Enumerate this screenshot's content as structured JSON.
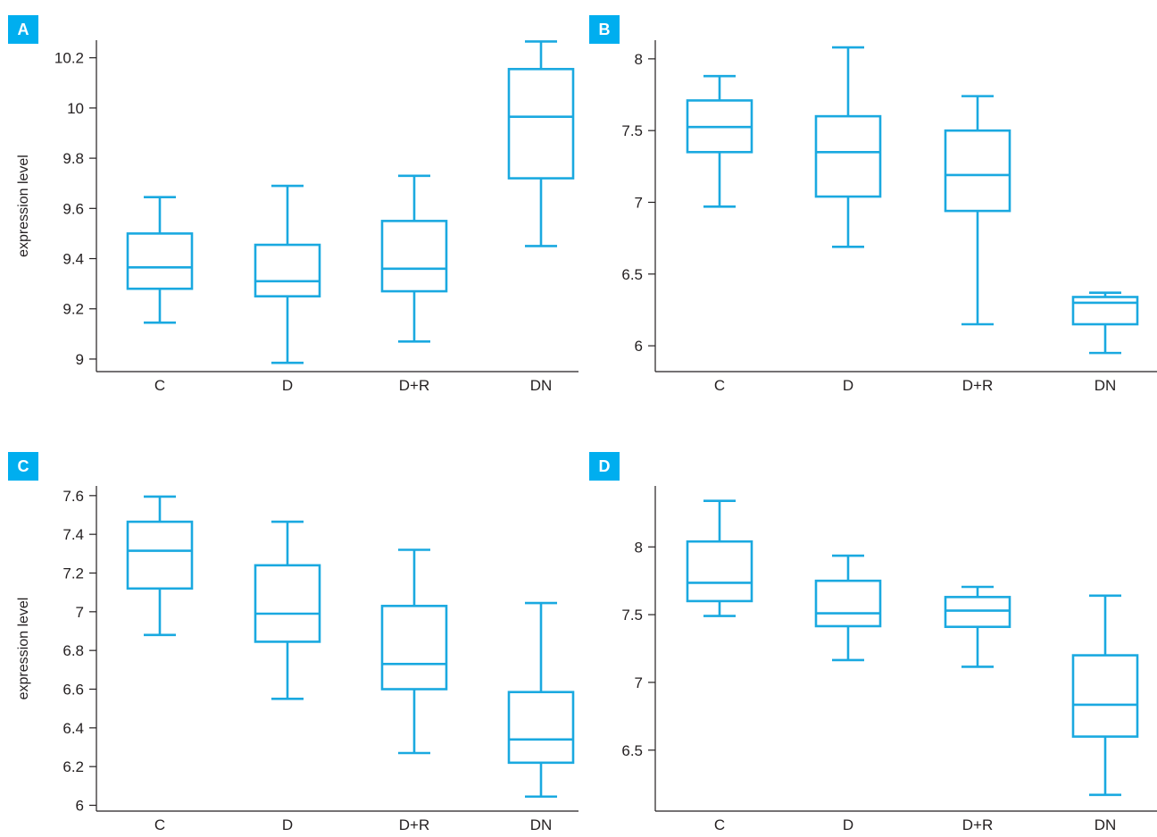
{
  "colors": {
    "accent": "#1aa9e0",
    "badge": "#00aeef",
    "axis": "#231f20"
  },
  "chart_data": [
    {
      "panel": "A",
      "type": "box",
      "ylabel": "expression level",
      "categories": [
        "C",
        "D",
        "D+R",
        "DN"
      ],
      "yticks": [
        "9",
        "9.2",
        "9.4",
        "9.6",
        "9.8",
        "10",
        "10.2"
      ],
      "ylim": [
        8.95,
        10.27
      ],
      "boxes": [
        {
          "min": 9.145,
          "q1": 9.28,
          "median": 9.365,
          "q3": 9.5,
          "max": 9.645
        },
        {
          "min": 8.985,
          "q1": 9.25,
          "median": 9.31,
          "q3": 9.455,
          "max": 9.69
        },
        {
          "min": 9.07,
          "q1": 9.27,
          "median": 9.36,
          "q3": 9.55,
          "max": 9.73
        },
        {
          "min": 9.45,
          "q1": 9.72,
          "median": 9.965,
          "q3": 10.155,
          "max": 10.265
        }
      ]
    },
    {
      "panel": "B",
      "type": "box",
      "ylabel": "",
      "categories": [
        "C",
        "D",
        "D+R",
        "DN"
      ],
      "yticks": [
        "6",
        "6.5",
        "7",
        "7.5",
        "8"
      ],
      "ylim": [
        5.82,
        8.13
      ],
      "boxes": [
        {
          "min": 6.97,
          "q1": 7.35,
          "median": 7.525,
          "q3": 7.71,
          "max": 7.88
        },
        {
          "min": 6.69,
          "q1": 7.04,
          "median": 7.35,
          "q3": 7.6,
          "max": 8.08
        },
        {
          "min": 6.15,
          "q1": 6.94,
          "median": 7.19,
          "q3": 7.5,
          "max": 7.74
        },
        {
          "min": 5.95,
          "q1": 6.15,
          "median": 6.3,
          "q3": 6.34,
          "max": 6.37
        }
      ]
    },
    {
      "panel": "C",
      "type": "box",
      "ylabel": "expression level",
      "categories": [
        "C",
        "D",
        "D+R",
        "DN"
      ],
      "yticks": [
        "6",
        "6.2",
        "6.4",
        "6.6",
        "6.8",
        "7",
        "7.2",
        "7.4",
        "7.6"
      ],
      "ylim": [
        5.97,
        7.65
      ],
      "boxes": [
        {
          "min": 6.88,
          "q1": 7.12,
          "median": 7.315,
          "q3": 7.465,
          "max": 7.595
        },
        {
          "min": 6.55,
          "q1": 6.845,
          "median": 6.99,
          "q3": 7.24,
          "max": 7.465
        },
        {
          "min": 6.27,
          "q1": 6.6,
          "median": 6.73,
          "q3": 7.03,
          "max": 7.32
        },
        {
          "min": 6.045,
          "q1": 6.22,
          "median": 6.34,
          "q3": 6.585,
          "max": 7.045
        }
      ]
    },
    {
      "panel": "D",
      "type": "box",
      "ylabel": "",
      "categories": [
        "C",
        "D",
        "D+R",
        "DN"
      ],
      "yticks": [
        "6.5",
        "7",
        "7.5",
        "8"
      ],
      "ylim": [
        6.05,
        8.45
      ],
      "boxes": [
        {
          "min": 7.49,
          "q1": 7.6,
          "median": 7.735,
          "q3": 8.04,
          "max": 8.34
        },
        {
          "min": 7.165,
          "q1": 7.415,
          "median": 7.51,
          "q3": 7.75,
          "max": 7.935
        },
        {
          "min": 7.115,
          "q1": 7.41,
          "median": 7.53,
          "q3": 7.63,
          "max": 7.705
        },
        {
          "min": 6.17,
          "q1": 6.6,
          "median": 6.835,
          "q3": 7.2,
          "max": 7.64
        }
      ]
    }
  ]
}
